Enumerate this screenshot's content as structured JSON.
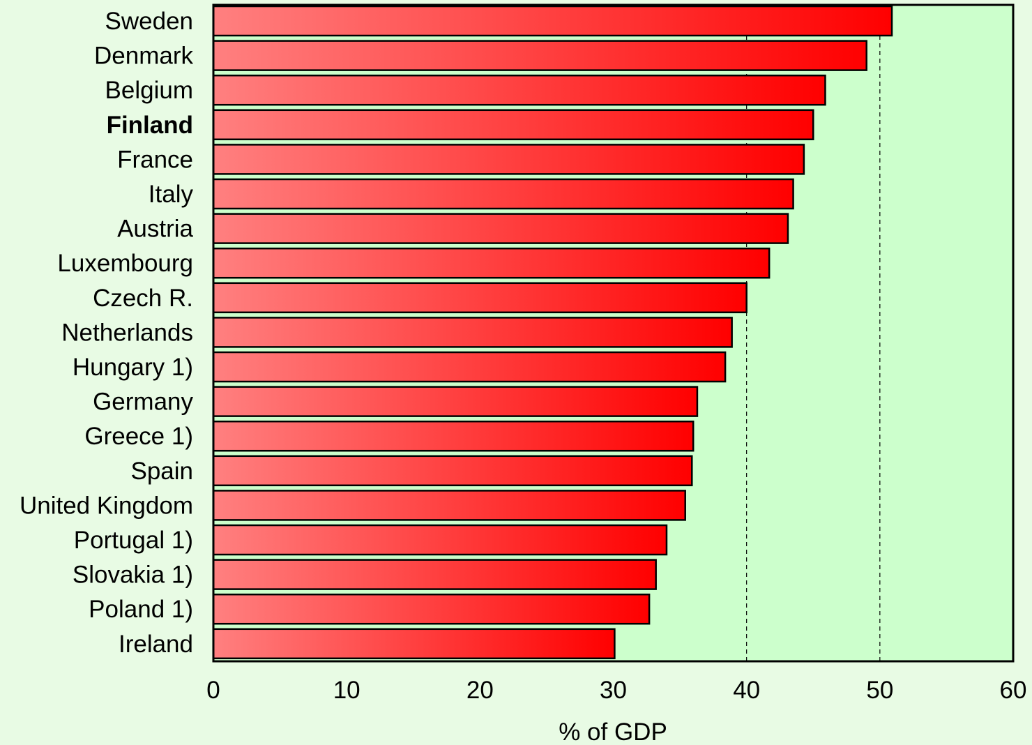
{
  "colors": {
    "page_background": "#e8fbe4",
    "plot_background": "#ccffcc",
    "bar_gradient_start": "#ff8080",
    "bar_gradient_end": "#ff0000",
    "bar_outline": "#000000",
    "reference_line": "#000000"
  },
  "chart_data": {
    "type": "bar",
    "orientation": "horizontal",
    "categories": [
      "Sweden",
      "Denmark",
      "Belgium",
      "Finland",
      "France",
      "Italy",
      "Austria",
      "Luxembourg",
      "Czech R.",
      "Netherlands",
      "Hungary 1)",
      "Germany",
      "Greece 1)",
      "Spain",
      "United Kingdom",
      "Portugal 1)",
      "Slovakia 1)",
      "Poland 1)",
      "Ireland"
    ],
    "highlighted_category": "Finland",
    "values": [
      50.9,
      49.0,
      45.9,
      45.0,
      44.3,
      43.5,
      43.1,
      41.7,
      40.0,
      38.9,
      38.4,
      36.3,
      36.0,
      35.9,
      35.4,
      34.0,
      33.2,
      32.7,
      30.1
    ],
    "xlabel": "% of GDP",
    "ylabel": "",
    "xlim": [
      0,
      60
    ],
    "xticks": [
      0,
      10,
      20,
      30,
      40,
      50,
      60
    ],
    "reference_lines": [
      40,
      50
    ],
    "grid": false,
    "legend": "none"
  }
}
